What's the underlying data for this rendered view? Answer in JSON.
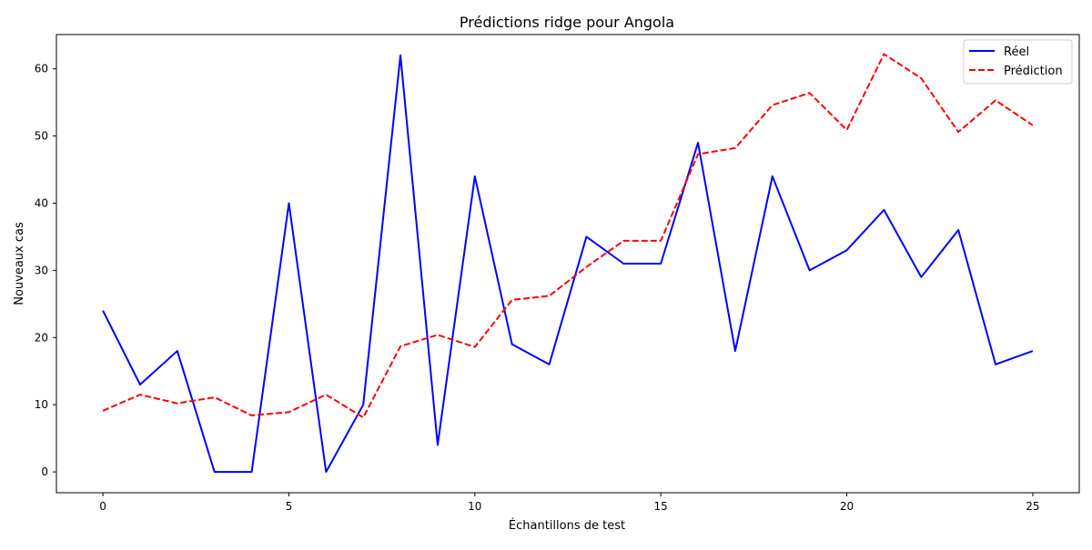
{
  "chart_data": {
    "type": "line",
    "title": "Prédictions ridge pour Angola",
    "xlabel": "Échantillons de test",
    "ylabel": "Nouveaux cas",
    "xlim": [
      -1.25,
      26.25
    ],
    "ylim": [
      -3.1,
      65.1
    ],
    "x_ticks": [
      0,
      5,
      10,
      15,
      20,
      25
    ],
    "y_ticks": [
      0,
      10,
      20,
      30,
      40,
      50,
      60
    ],
    "grid": false,
    "legend_position": "top-right",
    "x": [
      0,
      1,
      2,
      3,
      4,
      5,
      6,
      7,
      8,
      9,
      10,
      11,
      12,
      13,
      14,
      15,
      16,
      17,
      18,
      19,
      20,
      21,
      22,
      23,
      24,
      25
    ],
    "series": [
      {
        "name": "Réel",
        "color": "#0000ff",
        "style": "solid",
        "values": [
          24,
          13,
          18,
          0,
          0,
          40,
          0,
          10,
          62,
          4,
          44,
          19,
          16,
          35,
          31,
          31,
          49,
          18,
          44,
          30,
          33,
          39,
          29,
          36,
          16,
          18
        ]
      },
      {
        "name": "Prédiction",
        "color": "#ff0000",
        "style": "dashed",
        "values": [
          9.1,
          11.5,
          10.2,
          11.1,
          8.4,
          8.9,
          11.5,
          8.1,
          18.7,
          20.4,
          18.6,
          25.6,
          26.2,
          30.5,
          34.4,
          34.4,
          47.3,
          48.2,
          54.6,
          56.4,
          50.9,
          62.2,
          58.6,
          50.6,
          55.3,
          51.6
        ]
      }
    ]
  }
}
